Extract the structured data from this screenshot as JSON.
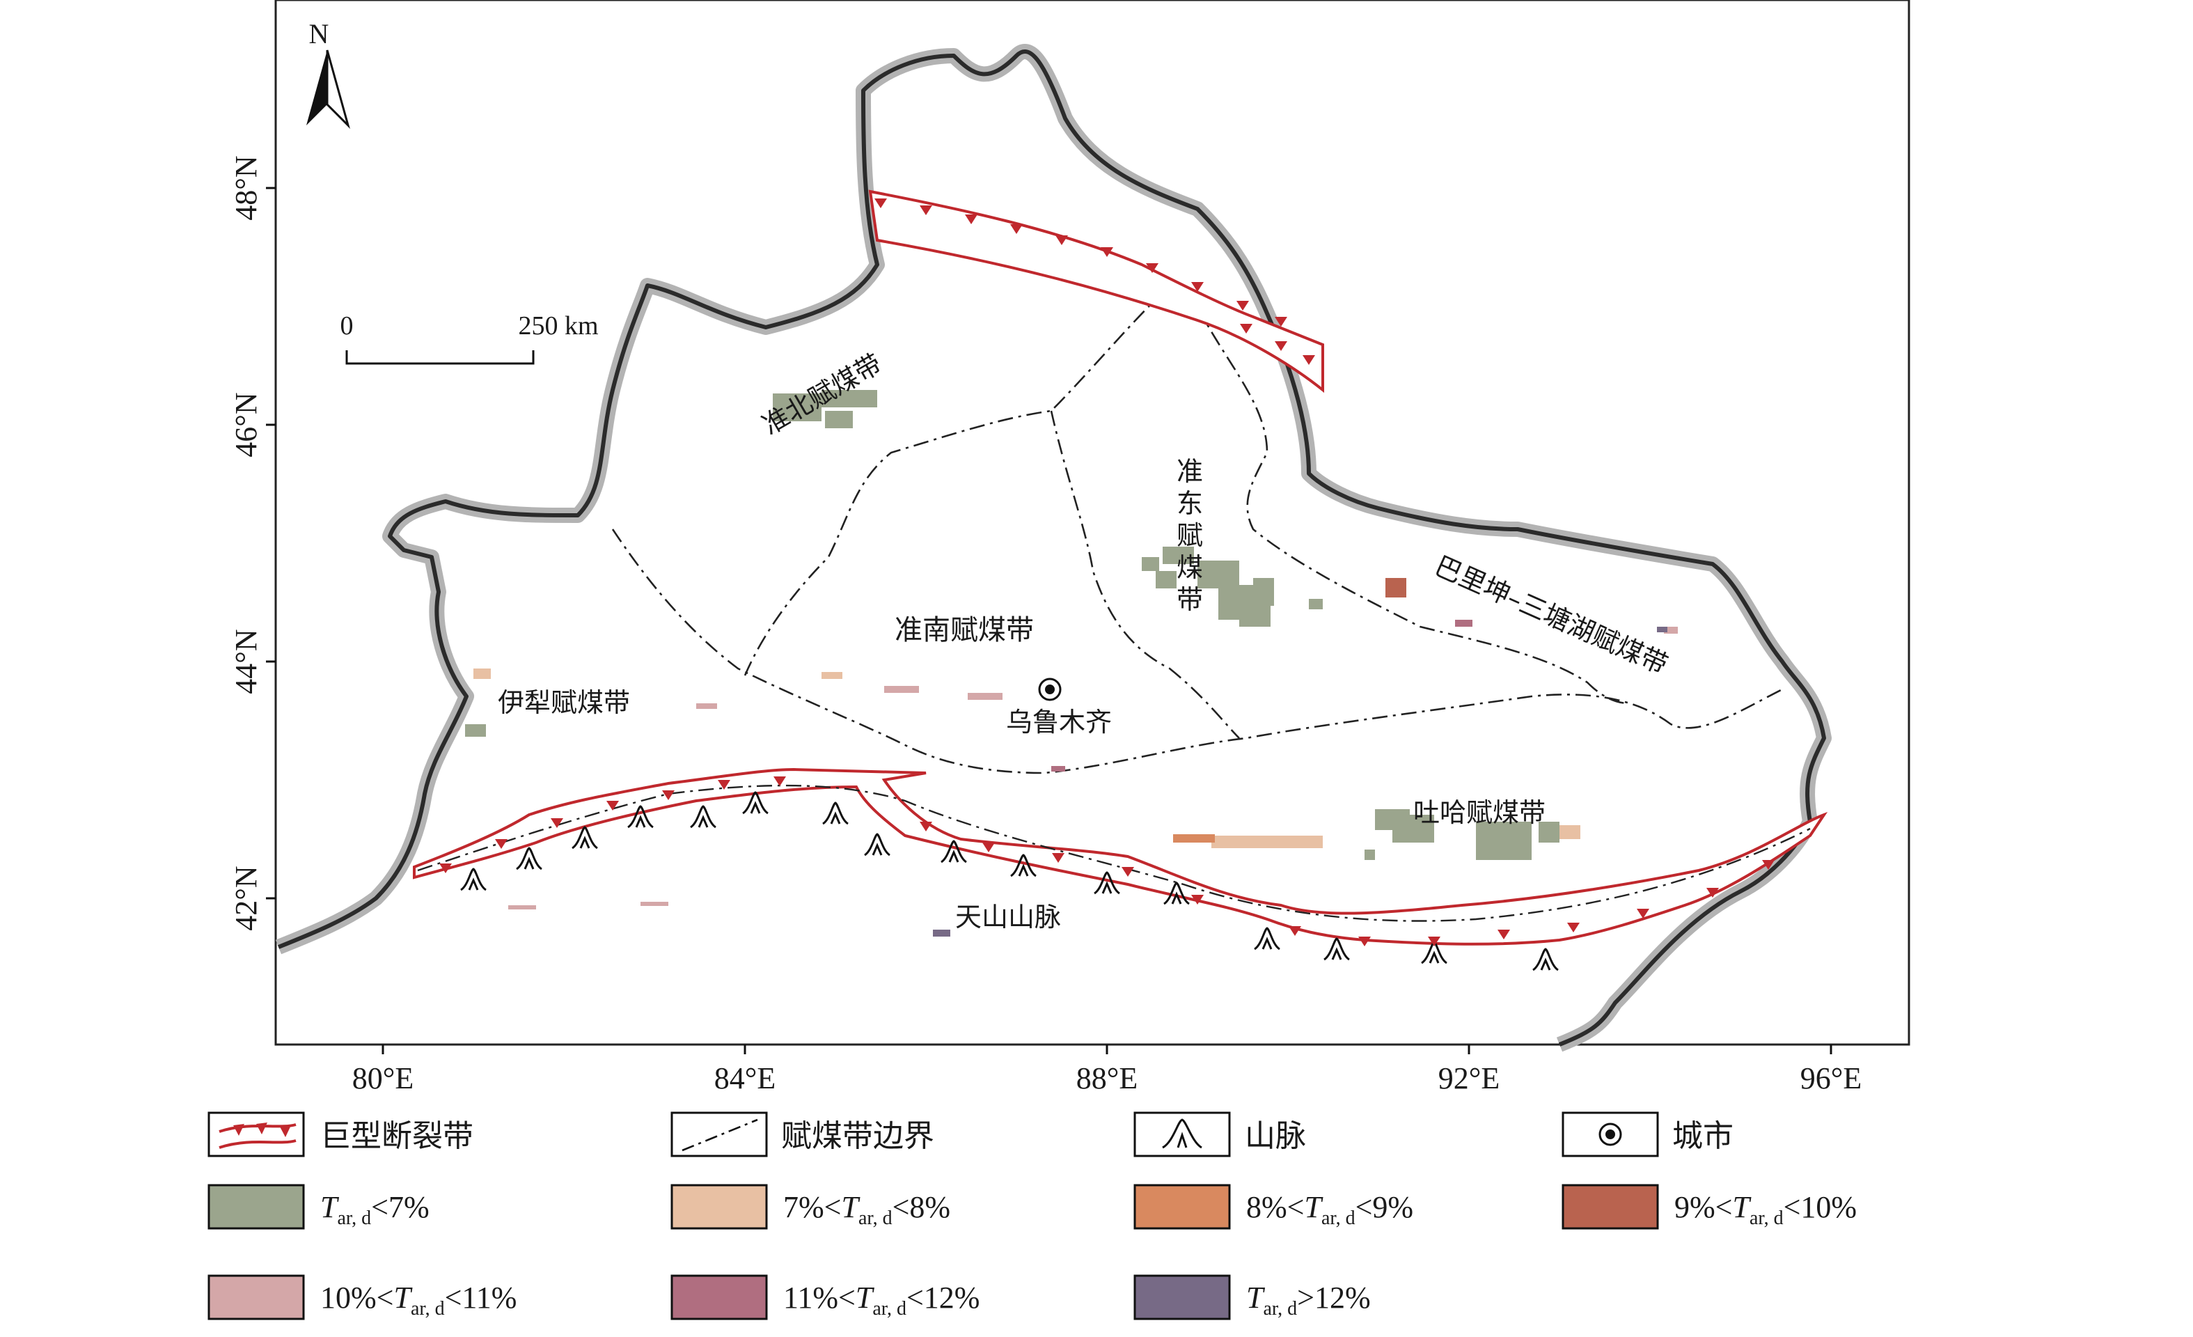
{
  "map": {
    "north_label": "N",
    "scale_bar": {
      "start": "0",
      "end": "250 km"
    },
    "lon_ticks": [
      "80°E",
      "84°E",
      "88°E",
      "92°E",
      "96°E"
    ],
    "lat_ticks": [
      "48°N",
      "46°N",
      "44°N",
      "42°N"
    ],
    "regions": {
      "zhunbei": "准北赋煤带",
      "zhundong": [
        "准",
        "东",
        "赋",
        "煤",
        "带"
      ],
      "zhunnan": "准南赋煤带",
      "balikun": "巴里坤–三塘湖赋煤带",
      "yili": "伊犁赋煤带",
      "tuha": "吐哈赋煤带",
      "tianshan": "天山山脉",
      "city": "乌鲁木齐"
    },
    "colors": {
      "fault": "#c0282d",
      "boundary_halo": "#b3b3b3",
      "boundary_line": "#2b2b2b",
      "class_lt7": "#9ba58d",
      "class_7_8": "#e8c0a3",
      "class_8_9": "#d9895f",
      "class_9_10": "#b9634f",
      "class_10_11": "#d4a7a8",
      "class_11_12": "#b06e80",
      "class_gt12": "#776a86"
    }
  },
  "legend": {
    "fault": "巨型断裂带",
    "boundary": "赋煤带边界",
    "mountain": "山脉",
    "city": "城市",
    "classes": [
      {
        "pre": "",
        "post": "<7%"
      },
      {
        "pre": "7%<",
        "post": "<8%"
      },
      {
        "pre": "8%<",
        "post": "<9%"
      },
      {
        "pre": "9%<",
        "post": "<10%"
      },
      {
        "pre": "10%<",
        "post": "<11%"
      },
      {
        "pre": "11%<",
        "post": "<12%"
      },
      {
        "pre": "",
        "post": ">12%"
      }
    ],
    "symbol_T": "T",
    "symbol_sub": "ar, d"
  }
}
